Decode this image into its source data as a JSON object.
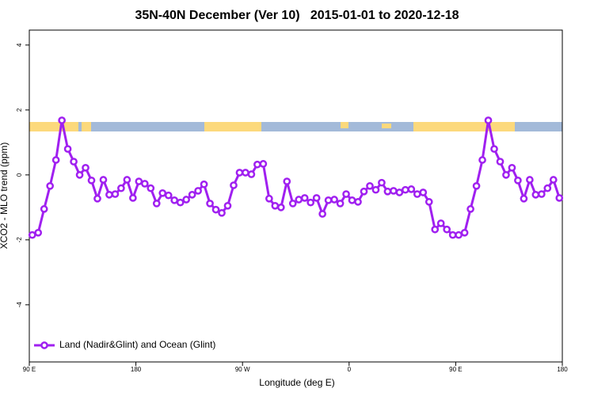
{
  "chart_data": {
    "type": "line",
    "title": "35N-40N December (Ver 10)   2015-01-01 to 2020-12-18",
    "xlabel": "Longitude (deg E)",
    "ylabel": "XCO2 - MLO trend (ppm)",
    "x": [
      92.5,
      97.5,
      102.5,
      107.5,
      112.5,
      117.5,
      122.5,
      127.5,
      132.5,
      137.5,
      142.5,
      147.5,
      152.5,
      157.5,
      162.5,
      167.5,
      172.5,
      177.5,
      182.5,
      187.5,
      192.5,
      197.5,
      202.5,
      207.5,
      212.5,
      217.5,
      222.5,
      227.5,
      232.5,
      237.5,
      242.5,
      247.5,
      252.5,
      257.5,
      262.5,
      267.5,
      272.5,
      277.5,
      282.5,
      287.5,
      292.5,
      297.5,
      302.5,
      307.5,
      312.5,
      317.5,
      322.5,
      327.5,
      332.5,
      337.5,
      342.5,
      347.5,
      352.5,
      357.5,
      362.5,
      367.5,
      372.5,
      377.5,
      382.5,
      387.5,
      392.5,
      397.5,
      402.5,
      407.5,
      412.5,
      417.5,
      422.5,
      427.5,
      432.5,
      437.5,
      442.5,
      447.5,
      452.5,
      457.5,
      462.5,
      467.5,
      472.5,
      477.5,
      482.5,
      487.5,
      492.5,
      497.5,
      502.5,
      507.5,
      512.5,
      517.5,
      522.5,
      527.5,
      532.5,
      537.5
    ],
    "series": [
      {
        "name": "Land (Nadir&Glint) and Ocean (Glint)",
        "color": "#a020f0",
        "values": [
          -1.85,
          -1.78,
          -1.05,
          -0.34,
          0.46,
          1.68,
          0.8,
          0.41,
          0,
          0.22,
          -0.17,
          -0.73,
          -0.15,
          -0.61,
          -0.59,
          -0.41,
          -0.15,
          -0.71,
          -0.2,
          -0.27,
          -0.41,
          -0.88,
          -0.56,
          -0.63,
          -0.78,
          -0.85,
          -0.76,
          -0.61,
          -0.49,
          -0.29,
          -0.88,
          -1.07,
          -1.17,
          -0.95,
          -0.32,
          0.07,
          0.07,
          0.02,
          0.32,
          0.34,
          -0.73,
          -0.95,
          -1.0,
          -0.2,
          -0.88,
          -0.76,
          -0.71,
          -0.85,
          -0.71,
          -1.2,
          -0.78,
          -0.76,
          -0.88,
          -0.59,
          -0.78,
          -0.83,
          -0.51,
          -0.34,
          -0.46,
          -0.24,
          -0.51,
          -0.49,
          -0.54,
          -0.46,
          -0.44,
          -0.59,
          -0.54,
          -0.83,
          -1.68,
          -1.49,
          -1.68,
          -1.85,
          -1.85,
          -1.78,
          -1.05,
          -0.34,
          0.46,
          1.68,
          0.8,
          0.41,
          0,
          0.22,
          -0.17,
          -0.73,
          -0.15,
          -0.61,
          -0.59,
          -0.41,
          -0.15,
          -0.71
        ]
      }
    ],
    "xlim": [
      90,
      540
    ],
    "xticks": [
      {
        "value": 90,
        "label": "90 E"
      },
      180,
      {
        "value": 270,
        "label": "90 W"
      },
      {
        "value": 360,
        "label": "0"
      },
      {
        "value": 450,
        "label": "90 E"
      },
      {
        "value": 540,
        "label": "180"
      }
    ],
    "ylim": [
      -5.76,
      4.46
    ],
    "yticks": [
      -4,
      -2,
      0,
      2,
      4
    ],
    "legend": "bottomleft"
  }
}
